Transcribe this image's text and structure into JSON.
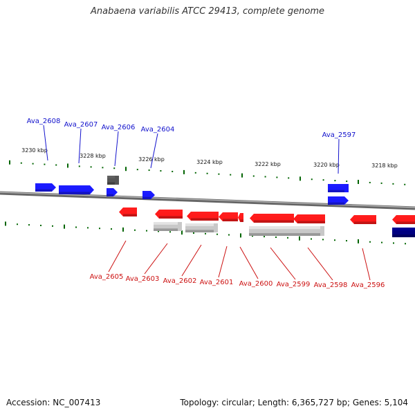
{
  "title": "Anabaena variabilis ATCC 29413, complete genome",
  "footer": {
    "accession": "Accession: NC_007413",
    "summary": "Topology: circular; Length: 6,365,727 bp; Genes: 5,104"
  },
  "colors": {
    "forward_gene": "#1a1aff",
    "forward_label": "#1010cc",
    "reverse_gene": "#ff1a1a",
    "reverse_label": "#cc1010",
    "other_feature": "#555555",
    "rna_feature": "#c8c8c8",
    "dark_feature": "#000080",
    "tick": "#006400",
    "backbone": "#888888"
  },
  "scale_labels": [
    "3230 kbp",
    "3228 kbp",
    "3226 kbp",
    "3224 kbp",
    "3222 kbp",
    "3220 kbp",
    "3218 kbp"
  ],
  "forward_genes": [
    "Ava_2608",
    "Ava_2607",
    "Ava_2606",
    "Ava_2604",
    "Ava_2597"
  ],
  "reverse_genes": [
    "Ava_2605",
    "Ava_2603",
    "Ava_2602",
    "Ava_2601",
    "Ava_2600",
    "Ava_2599",
    "Ava_2598",
    "Ava_2596"
  ]
}
